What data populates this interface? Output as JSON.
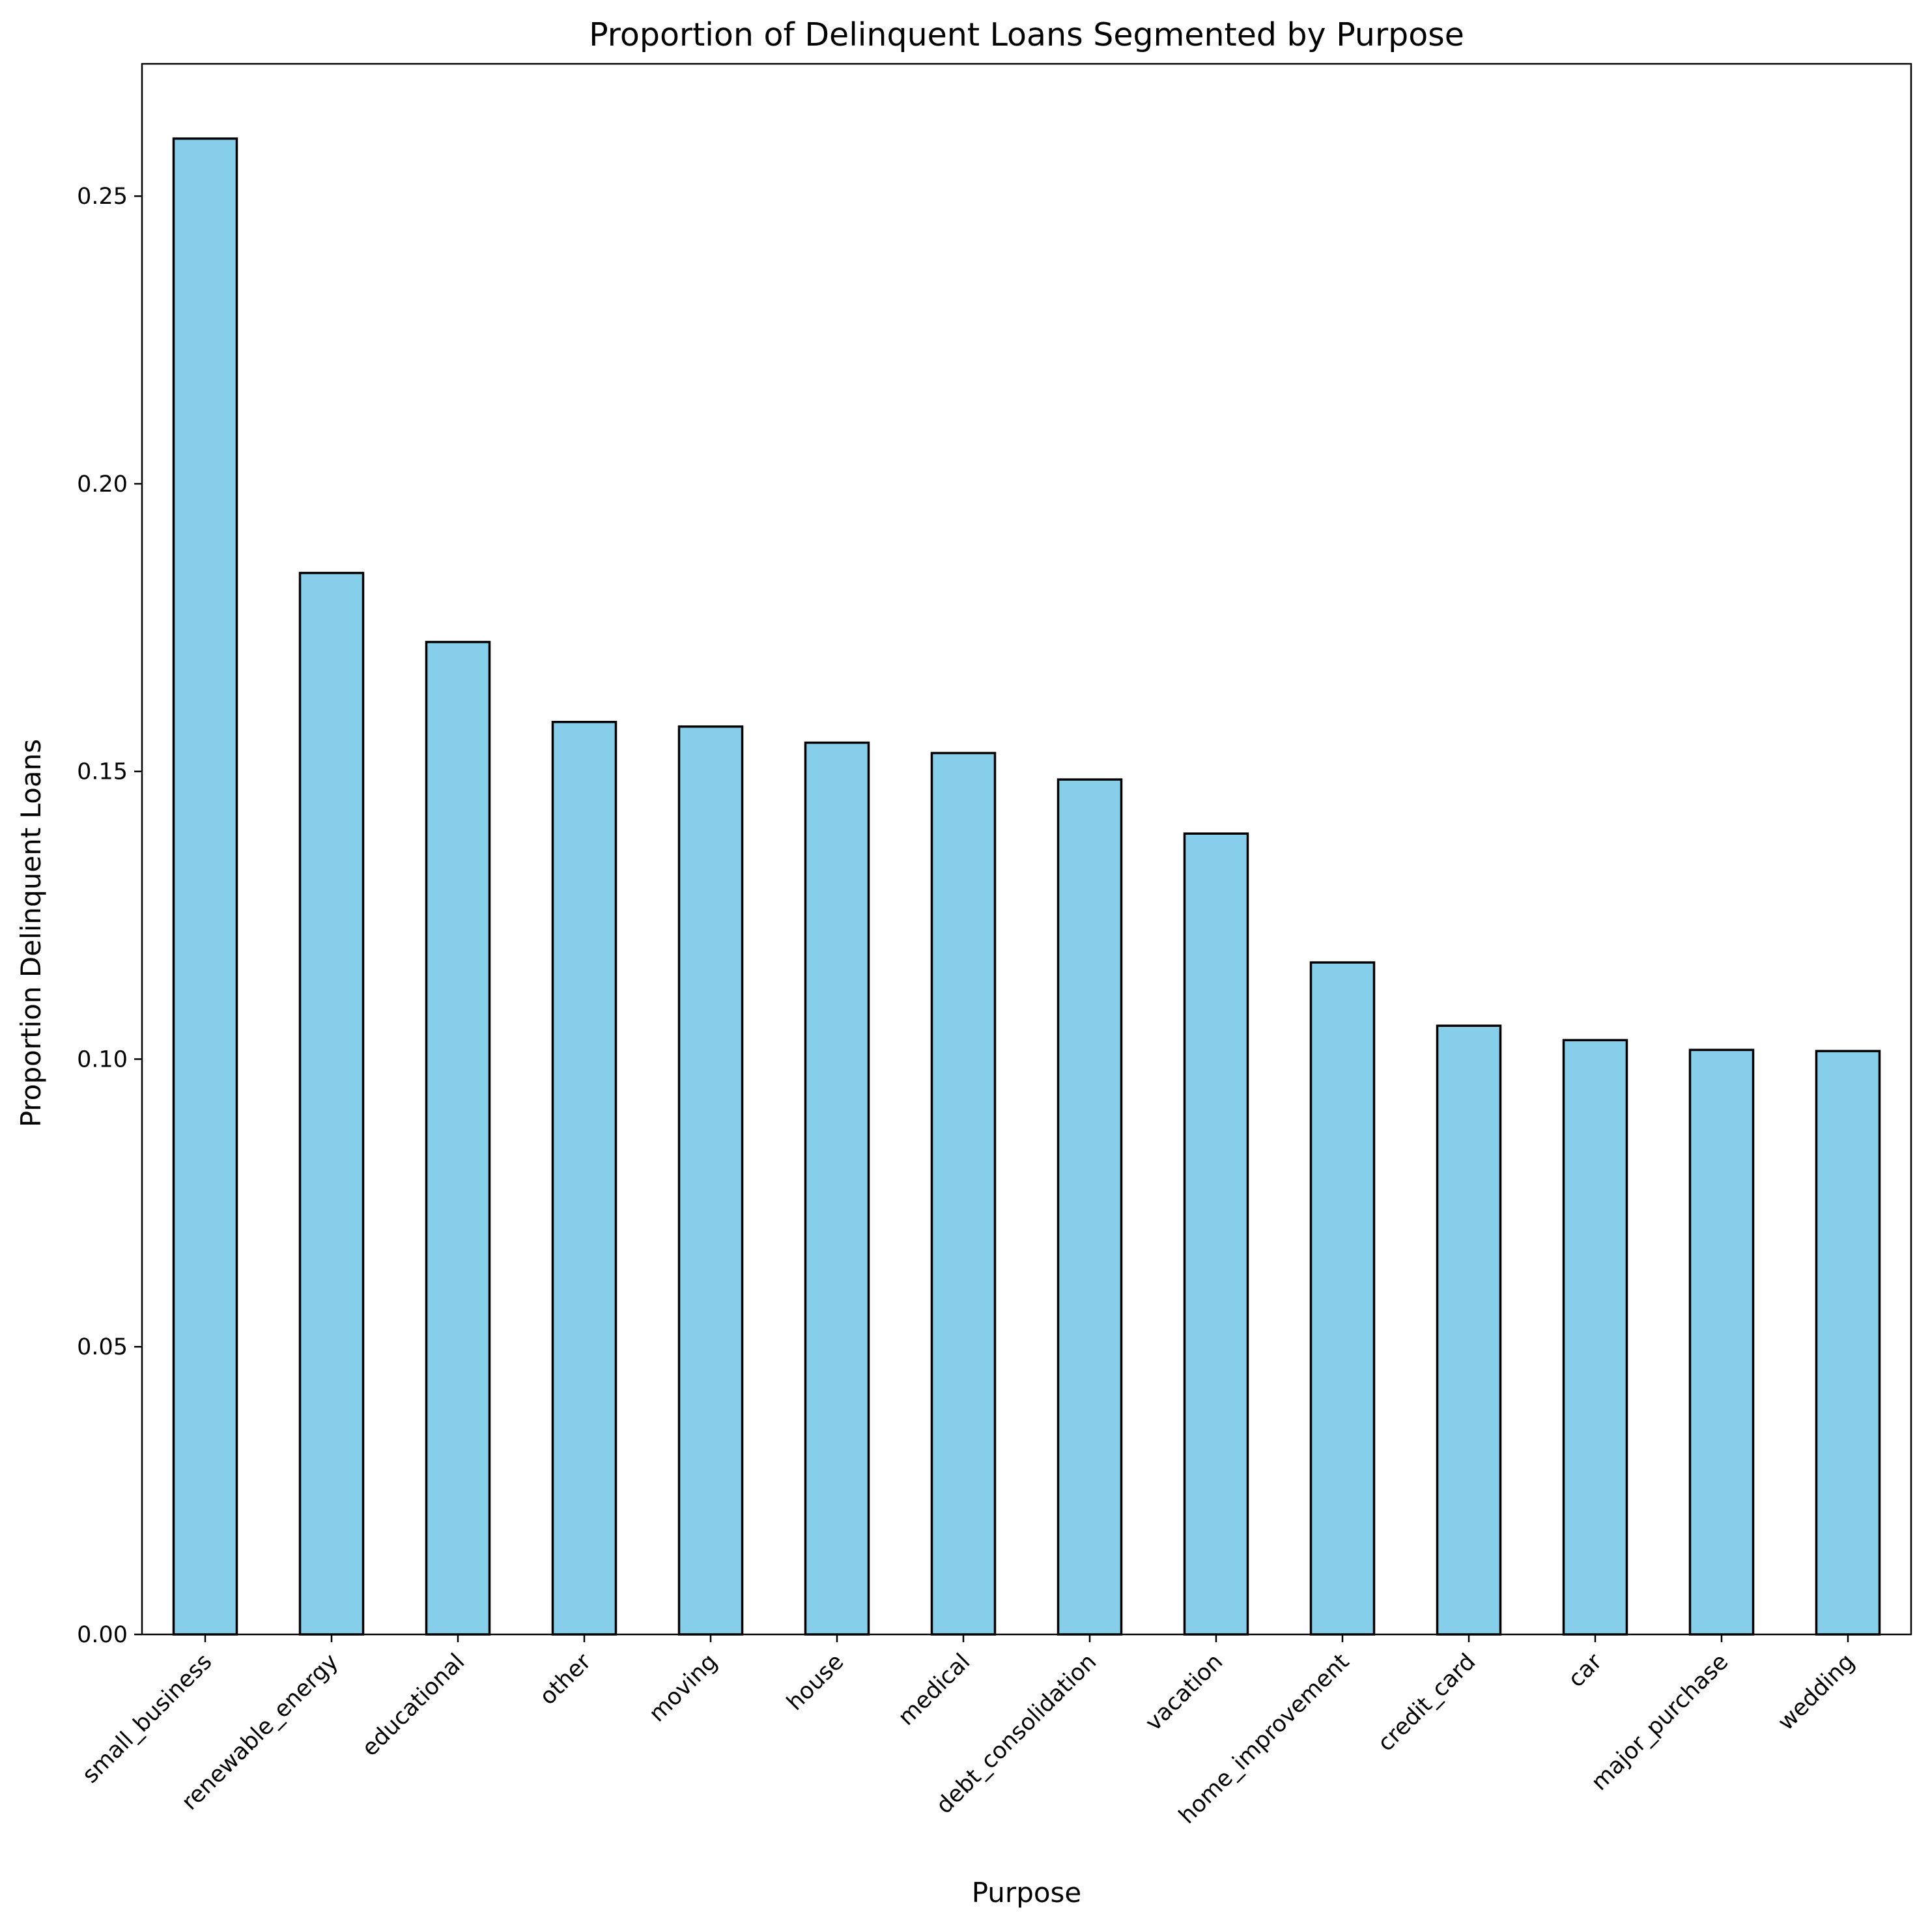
{
  "chart_data": {
    "type": "bar",
    "title": "Proportion of Delinquent Loans Segmented by Purpose",
    "xlabel": "Purpose",
    "ylabel": "Proportion Delinquent Loans",
    "categories": [
      "small_business",
      "renewable_energy",
      "educational",
      "other",
      "moving",
      "house",
      "medical",
      "debt_consolidation",
      "vacation",
      "home_improvement",
      "credit_card",
      "car",
      "major_purchase",
      "wedding"
    ],
    "values": [
      0.26,
      0.1845,
      0.1725,
      0.1586,
      0.1578,
      0.155,
      0.1532,
      0.1486,
      0.1392,
      0.1168,
      0.1058,
      0.1033,
      0.1016,
      0.1014
    ],
    "ylim": [
      0,
      0.273
    ],
    "yticks": [
      "0.00",
      "0.05",
      "0.10",
      "0.15",
      "0.20",
      "0.25"
    ],
    "grid": false,
    "bar_color": "#87ceeb",
    "edge_color": "#000000"
  }
}
